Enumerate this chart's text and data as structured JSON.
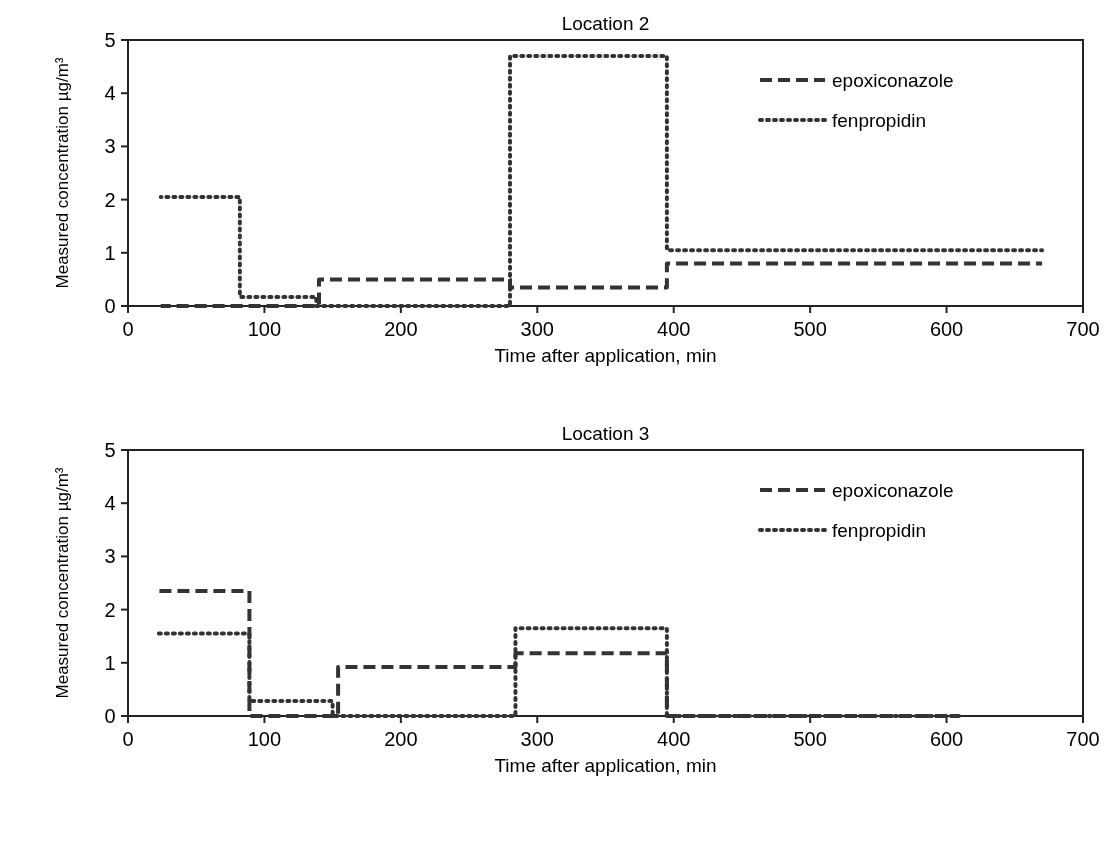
{
  "chart_data": [
    {
      "type": "step",
      "title": "Location 2",
      "xlabel": "Time after application, min",
      "ylabel": "Measured concentration µg/m³",
      "xlim": [
        0,
        700
      ],
      "xticks": [
        0,
        100,
        200,
        300,
        400,
        500,
        600,
        700
      ],
      "ylim": [
        0,
        5
      ],
      "yticks": [
        0,
        1,
        2,
        3,
        4,
        5
      ],
      "legend": "top right",
      "grid": false,
      "series": [
        {
          "name": "epoxiconazole",
          "color": "#333333",
          "line_style": "dashed",
          "x": [
            24,
            140,
            280,
            395,
            670
          ],
          "values": [
            0,
            0.5,
            0.35,
            0.8,
            0.8
          ]
        },
        {
          "name": "fenpropidin",
          "color": "#333333",
          "line_style": "dotted",
          "x": [
            24,
            82,
            138,
            280,
            395,
            670
          ],
          "values": [
            2.05,
            0.17,
            0,
            4.7,
            1.05,
            1.05
          ]
        }
      ]
    },
    {
      "type": "step",
      "title": "Location 3",
      "xlabel": "Time after application, min",
      "ylabel": "Measured concentration µg/m³",
      "xlim": [
        0,
        700
      ],
      "xticks": [
        0,
        100,
        200,
        300,
        400,
        500,
        600,
        700
      ],
      "ylim": [
        0,
        5
      ],
      "yticks": [
        0,
        1,
        2,
        3,
        4,
        5
      ],
      "legend": "top right",
      "grid": false,
      "series": [
        {
          "name": "epoxiconazole",
          "color": "#333333",
          "line_style": "dashed",
          "x": [
            22,
            89,
            154,
            284,
            395,
            609
          ],
          "values": [
            2.35,
            0,
            0.92,
            1.18,
            0,
            0
          ]
        },
        {
          "name": "fenpropidin",
          "color": "#333333",
          "line_style": "dotted",
          "x": [
            22,
            89,
            150,
            284,
            395,
            609
          ],
          "values": [
            1.55,
            0.28,
            0,
            1.65,
            0,
            0
          ]
        }
      ]
    }
  ]
}
